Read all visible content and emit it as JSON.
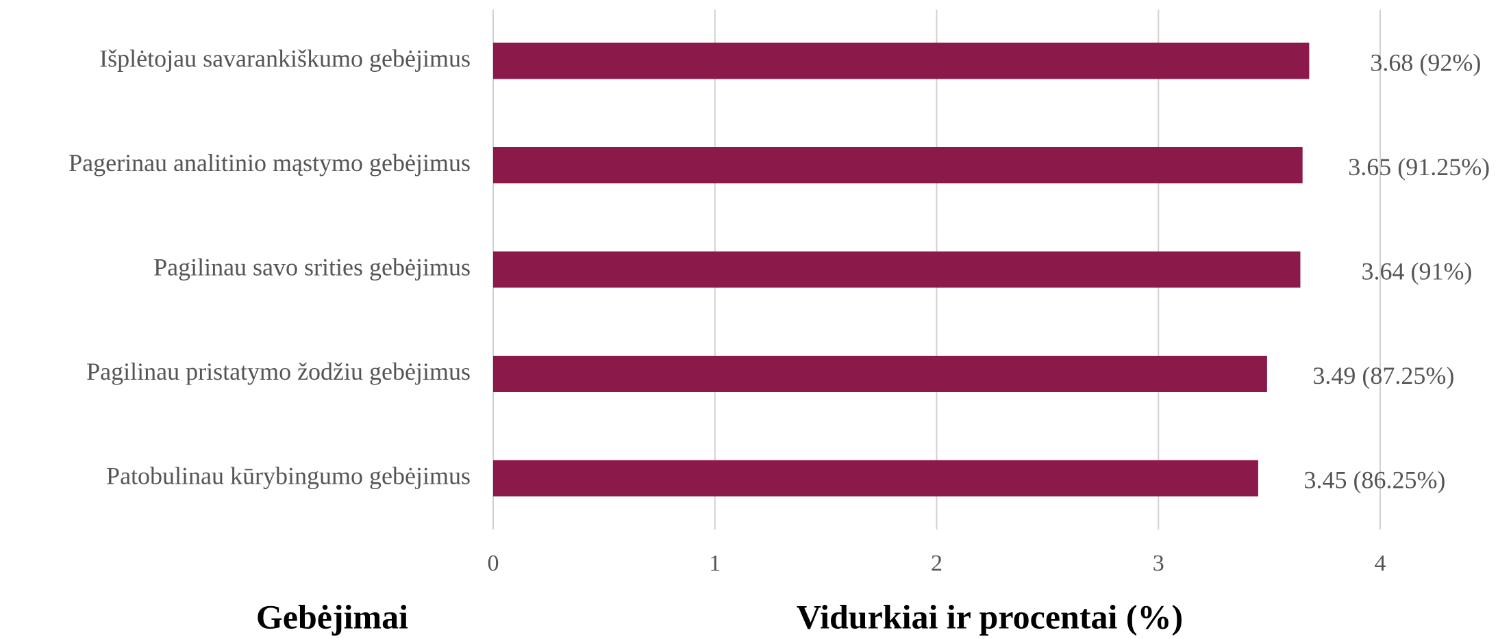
{
  "chart_data": {
    "type": "bar",
    "categories": [
      "Išplėtojau savarankiškumo gebėjimus",
      "Pagerinau analitinio mąstymo gebėjimus",
      "Pagilinau savo srities gebėjimus",
      "Pagilinau pristatymo žodžiu gebėjimus",
      "Patobulinau kūrybingumo gebėjimus"
    ],
    "values": [
      3.68,
      3.65,
      3.64,
      3.49,
      3.45
    ],
    "value_labels": [
      "3.68 (92%)",
      "3.65 (91.25%)",
      "3.64 (91%)",
      "3.49 (87.25%)",
      "3.45 (86.25%)"
    ],
    "color": "#8b1a4a",
    "xlim": [
      0,
      4
    ],
    "xticks": [
      0,
      1,
      2,
      3,
      4
    ],
    "grid": true,
    "x_label": "Vidurkiai ir procentai (%)",
    "y_label": "Gebėjimai"
  }
}
